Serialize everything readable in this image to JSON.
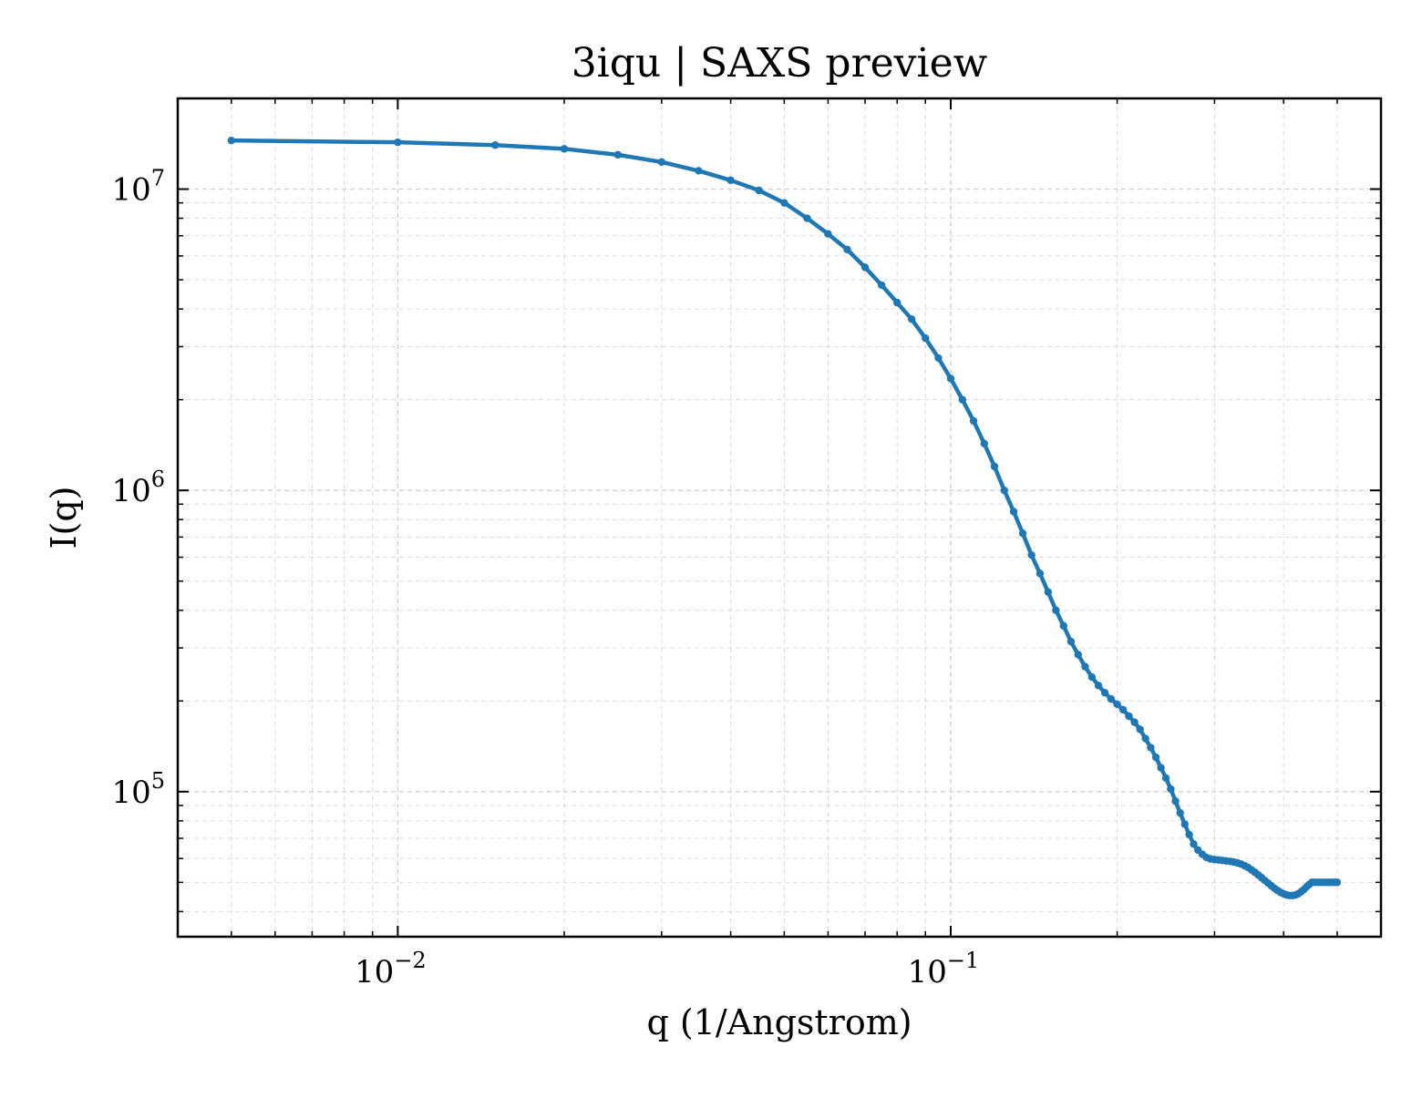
{
  "chart_data": {
    "type": "line",
    "title": "3iqu | SAXS preview",
    "xlabel": "q (1/Angstrom)",
    "ylabel": "I(q)",
    "x_scale": "log",
    "y_scale": "log",
    "xlim": [
      0.004,
      0.6
    ],
    "ylim": [
      33000,
      20000000
    ],
    "grid": true,
    "legend": "none",
    "line_color": "#1f77b4",
    "x_ticks": [
      {
        "value": 0.01,
        "base": "10",
        "exp": "−2"
      },
      {
        "value": 0.1,
        "base": "10",
        "exp": "−1"
      }
    ],
    "y_ticks": [
      {
        "value": 100000,
        "base": "10",
        "exp": "5"
      },
      {
        "value": 1000000,
        "base": "10",
        "exp": "6"
      },
      {
        "value": 10000000,
        "base": "10",
        "exp": "7"
      }
    ],
    "series": [
      {
        "x": [
          0.005,
          0.01,
          0.015,
          0.02,
          0.025,
          0.03,
          0.035,
          0.04,
          0.045,
          0.05,
          0.055,
          0.06,
          0.065,
          0.07,
          0.075,
          0.08,
          0.085,
          0.09,
          0.095,
          0.1,
          0.105,
          0.11,
          0.115,
          0.12,
          0.125,
          0.13,
          0.135,
          0.14,
          0.145,
          0.15,
          0.155,
          0.16,
          0.165,
          0.17,
          0.175,
          0.18,
          0.185,
          0.19,
          0.195,
          0.2,
          0.205,
          0.21,
          0.215,
          0.22,
          0.225,
          0.23,
          0.235,
          0.24,
          0.245,
          0.25,
          0.255,
          0.26,
          0.265,
          0.27,
          0.275,
          0.28,
          0.285,
          0.29,
          0.295,
          0.3,
          0.305,
          0.31,
          0.315,
          0.32,
          0.325,
          0.33,
          0.335,
          0.34,
          0.345,
          0.35,
          0.355,
          0.36,
          0.365,
          0.37,
          0.375,
          0.38,
          0.385,
          0.39,
          0.395,
          0.4,
          0.405,
          0.41,
          0.415,
          0.42,
          0.425,
          0.43,
          0.435,
          0.44,
          0.445,
          0.45,
          0.455,
          0.46,
          0.465,
          0.47,
          0.475,
          0.48,
          0.485,
          0.49,
          0.495,
          0.5
        ],
        "y": [
          14500000,
          14300000,
          14000000,
          13600000,
          13000000,
          12300000,
          11500000,
          10700000,
          9900000,
          9000000,
          8000000,
          7100000,
          6300000,
          5500000,
          4800000,
          4200000,
          3700000,
          3200000,
          2750000,
          2350000,
          2000000,
          1700000,
          1430000,
          1200000,
          1000000,
          850000,
          720000,
          610000,
          530000,
          460000,
          400000,
          355000,
          315000,
          285000,
          260000,
          240000,
          225000,
          213000,
          203000,
          195000,
          187000,
          178000,
          170000,
          161000,
          150000,
          140000,
          130000,
          120000,
          111000,
          102000,
          93000,
          85000,
          78000,
          72000,
          67000,
          64000,
          62000,
          60500,
          59800,
          59500,
          59300,
          59100,
          58900,
          58700,
          58400,
          58000,
          57500,
          56800,
          56000,
          55000,
          54000,
          52900,
          51800,
          50700,
          49700,
          48700,
          47800,
          47000,
          46300,
          45800,
          45400,
          45200,
          45200,
          45400,
          45800,
          46500,
          47300,
          48300,
          49200,
          50000,
          50000,
          50000,
          50000,
          50000,
          50000,
          50000,
          50000,
          50000,
          50000,
          50000
        ]
      }
    ]
  }
}
